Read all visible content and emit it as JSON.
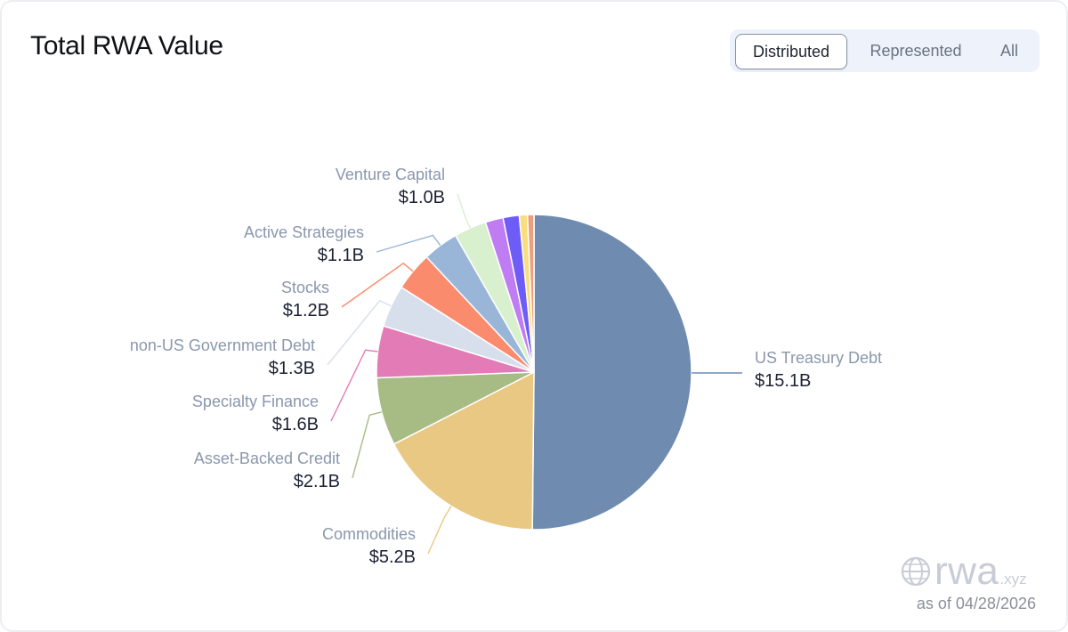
{
  "header": {
    "title": "Total RWA Value"
  },
  "toggle": {
    "options": [
      "Distributed",
      "Represented",
      "All"
    ],
    "selected": "Distributed"
  },
  "chart_data": {
    "type": "pie",
    "title": "Total RWA Value",
    "units": "USD",
    "slices": [
      {
        "label": "US Treasury Debt",
        "value": 15.1,
        "display": "$15.1B",
        "color": "#6f8cb0"
      },
      {
        "label": "Commodities",
        "value": 5.2,
        "display": "$5.2B",
        "color": "#e9c884"
      },
      {
        "label": "Asset-Backed Credit",
        "value": 2.1,
        "display": "$2.1B",
        "color": "#a7bb85"
      },
      {
        "label": "Specialty Finance",
        "value": 1.6,
        "display": "$1.6B",
        "color": "#e27bb6"
      },
      {
        "label": "non-US Government Debt",
        "value": 1.3,
        "display": "$1.3B",
        "color": "#d7dfec"
      },
      {
        "label": "Stocks",
        "value": 1.2,
        "display": "$1.2B",
        "color": "#fb8b6d"
      },
      {
        "label": "Active Strategies",
        "value": 1.1,
        "display": "$1.1B",
        "color": "#99b6d8"
      },
      {
        "label": "Venture Capital",
        "value": 1.0,
        "display": "$1.0B",
        "color": "#d8f0ce"
      },
      {
        "label": "",
        "value": 0.55,
        "display": "",
        "color": "#c07cf2"
      },
      {
        "label": "",
        "value": 0.5,
        "display": "",
        "color": "#6e5cf6"
      },
      {
        "label": "",
        "value": 0.25,
        "display": "",
        "color": "#f8de7e"
      },
      {
        "label": "",
        "value": 0.2,
        "display": "",
        "color": "#e8a07e"
      }
    ]
  },
  "footer": {
    "brand": "rwa",
    "brand_suffix": ".xyz",
    "as_of": "as of 04/28/2026"
  }
}
